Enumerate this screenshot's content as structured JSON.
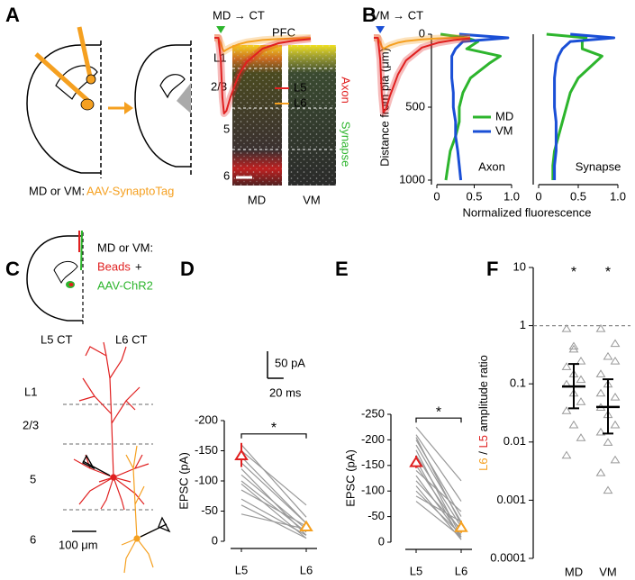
{
  "labels": [
    "A",
    "B",
    "C",
    "D",
    "E",
    "F"
  ],
  "panel_a": {
    "region": "PFC",
    "layers": [
      "L1",
      "2/3",
      "5",
      "6"
    ],
    "channels": [
      "Axon",
      "Synapse"
    ],
    "sections": [
      "MD",
      "VM"
    ],
    "injection": "MD or VM:",
    "virus": "AAV-SynaptoTag"
  },
  "panel_c": {
    "injection": "MD or VM:",
    "tracer": "Beads",
    "plus": "+",
    "virus": "AAV-ChR2",
    "cells": [
      "L5 CT",
      "L6 CT"
    ],
    "layers": [
      "L1",
      "2/3",
      "5",
      "6"
    ],
    "scale": "100 μm"
  },
  "chart_data": [
    {
      "type": "profile",
      "orientation": "vertical",
      "xlabel": "Distance from pia (μm)",
      "ylabel": "Normalized fluorescence",
      "annotation": "Axon",
      "legend": "center",
      "x": [
        0,
        25,
        50,
        100,
        150,
        200,
        300,
        400,
        500,
        600,
        700,
        800,
        900,
        1000
      ],
      "xlim": [
        0,
        1000
      ],
      "xticks": [
        0,
        500,
        1000
      ],
      "ylim": [
        0,
        1
      ],
      "yticks": [
        0,
        0.5,
        {
          "value": 1,
          "label": "1.0"
        }
      ],
      "series": [
        {
          "name": "MD",
          "color": "#2db52d",
          "values": [
            0.05,
            0.4,
            0.55,
            0.4,
            0.85,
            0.7,
            0.45,
            0.35,
            0.3,
            0.3,
            0.25,
            0.18,
            0.15,
            0.12
          ]
        },
        {
          "name": "VM",
          "color": "#1a4fd6",
          "values": [
            0.3,
            0.95,
            0.35,
            0.25,
            0.2,
            0.2,
            0.2,
            0.22,
            0.22,
            0.25,
            0.25,
            0.28,
            0.3,
            0.32
          ]
        }
      ]
    },
    {
      "type": "profile",
      "orientation": "vertical",
      "annotation": "Synapse",
      "x": [
        0,
        25,
        50,
        100,
        150,
        200,
        300,
        400,
        500,
        600,
        700,
        800,
        900,
        1000
      ],
      "xlim": [
        0,
        1000
      ],
      "ylim": [
        0,
        1
      ],
      "yticks": [
        0,
        0.5,
        {
          "value": 1,
          "label": "1.0"
        }
      ],
      "series": [
        {
          "color": "#2db52d",
          "values": [
            0.1,
            0.6,
            0.55,
            0.55,
            0.8,
            0.7,
            0.5,
            0.4,
            0.35,
            0.3,
            0.25,
            0.2,
            0.18,
            0.18
          ]
        },
        {
          "color": "#1a4fd6",
          "values": [
            0.4,
            0.95,
            0.4,
            0.3,
            0.25,
            0.22,
            0.2,
            0.2,
            0.2,
            0.22,
            0.22,
            0.22,
            0.2,
            0.2
          ]
        }
      ]
    },
    {
      "type": "trace",
      "title": "MD → CT",
      "stimulus": 8,
      "stimulus_color": "#2db52d",
      "legend": true,
      "x": [
        0,
        5,
        8,
        10,
        12,
        15,
        20,
        30,
        40,
        60,
        80,
        100,
        120
      ],
      "xlim": [
        0,
        120
      ],
      "ylim": [
        -160,
        10
      ],
      "series": [
        {
          "name": "L5",
          "color": "#e02020",
          "values": [
            0,
            0,
            -40,
            -110,
            -140,
            -135,
            -110,
            -70,
            -45,
            -20,
            -10,
            -5,
            -2
          ]
        },
        {
          "name": "L6",
          "color": "#f5a020",
          "values": [
            0,
            0,
            -10,
            -20,
            -25,
            -22,
            -18,
            -12,
            -8,
            -4,
            -2,
            -1,
            0
          ]
        }
      ],
      "scalebar": {
        "x": {
          "value": 20,
          "label": "20 ms"
        },
        "y": {
          "value": 50,
          "label": "50 pA"
        }
      }
    },
    {
      "type": "paired",
      "ylabel": "EPSC (pA)",
      "categories": [
        "L5",
        "L6"
      ],
      "values": [
        -143,
        -25
      ],
      "errors": [
        20,
        5
      ],
      "colors": [
        "#e02020",
        "#f5a020"
      ],
      "pairs": [
        [
          -160,
          -40
        ],
        [
          -140,
          -30
        ],
        [
          -120,
          -10
        ],
        [
          -110,
          -20
        ],
        [
          -100,
          -15
        ],
        [
          -95,
          -5
        ],
        [
          -85,
          -25
        ],
        [
          -70,
          -10
        ],
        [
          -60,
          -5
        ],
        [
          -45,
          -20
        ],
        [
          -130,
          -30
        ],
        [
          -150,
          -60
        ]
      ],
      "ylim": [
        0,
        -200
      ],
      "yticks": [
        -200,
        -150,
        -100,
        -50,
        0
      ],
      "annotation": "*"
    },
    {
      "type": "trace",
      "title": "VM → CT",
      "stimulus": 8,
      "stimulus_color": "#1a4fd6",
      "x": [
        0,
        5,
        8,
        10,
        12,
        15,
        20,
        30,
        40,
        60,
        80,
        100,
        120
      ],
      "xlim": [
        0,
        120
      ],
      "ylim": [
        -160,
        10
      ],
      "series": [
        {
          "color": "#e02020",
          "values": [
            0,
            0,
            -40,
            -105,
            -138,
            -132,
            -108,
            -68,
            -42,
            -18,
            -9,
            -4,
            -1
          ]
        },
        {
          "color": "#f5a020",
          "values": [
            0,
            0,
            -8,
            -16,
            -20,
            -18,
            -14,
            -9,
            -6,
            -3,
            -1,
            0,
            0
          ]
        }
      ]
    },
    {
      "type": "paired",
      "ylabel": "EPSC (pA)",
      "categories": [
        "L5",
        "L6"
      ],
      "values": [
        -157,
        -30
      ],
      "errors": [
        12,
        12
      ],
      "colors": [
        "#e02020",
        "#f5a020"
      ],
      "pairs": [
        [
          -225,
          -120
        ],
        [
          -210,
          -80
        ],
        [
          -200,
          -50
        ],
        [
          -190,
          -40
        ],
        [
          -180,
          -10
        ],
        [
          -170,
          -30
        ],
        [
          -160,
          -5
        ],
        [
          -150,
          -20
        ],
        [
          -140,
          -60
        ],
        [
          -130,
          -10
        ],
        [
          -120,
          -25
        ],
        [
          -110,
          -5
        ],
        [
          -100,
          -15
        ],
        [
          -90,
          -40
        ],
        [
          -80,
          -10
        ],
        [
          -205,
          -35
        ]
      ],
      "ylim": [
        0,
        -250
      ],
      "yticks": [
        -250,
        -200,
        -150,
        -100,
        -50,
        0
      ],
      "annotation": "*"
    },
    {
      "type": "strip",
      "log": true,
      "ylabel": [
        "L6",
        " / ",
        "L5",
        " amplitude ratio"
      ],
      "ylabel_colors": [
        "#f5a020",
        "#000000",
        "#e02020",
        "#000000"
      ],
      "categories": [
        "MD",
        "VM"
      ],
      "values": [
        0.09,
        0.04
      ],
      "intervals": [
        [
          0.038,
          0.22
        ],
        [
          0.014,
          0.12
        ]
      ],
      "points": [
        [
          0.9,
          0.45,
          0.25,
          0.2,
          0.15,
          0.12,
          0.1,
          0.07,
          0.05,
          0.035,
          0.02,
          0.012,
          0.006,
          0.4
        ],
        [
          0.9,
          0.3,
          0.25,
          0.15,
          0.1,
          0.06,
          0.04,
          0.03,
          0.02,
          0.015,
          0.01,
          0.005,
          0.003,
          0.0015,
          0.5,
          0.07
        ]
      ],
      "ylim": [
        0.0001,
        10
      ],
      "yticks": [
        0.0001,
        0.001,
        0.01,
        0.1,
        1,
        10
      ],
      "refline": 1,
      "annotations": [
        "*",
        "*"
      ]
    }
  ]
}
